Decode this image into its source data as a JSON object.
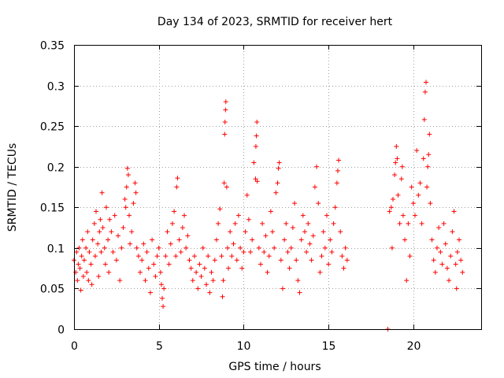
{
  "chart_data": {
    "type": "scatter",
    "title": "Day 134 of 2023, SRMTID for receiver hert",
    "xlabel": "GPS time / hours",
    "ylabel": "SRMTID / TECUs",
    "xlim": [
      0,
      24
    ],
    "ylim": [
      0,
      0.35
    ],
    "xticks": [
      0,
      5,
      10,
      15,
      20
    ],
    "xtick_labels": [
      "0",
      "5",
      "10",
      "15",
      "20"
    ],
    "yticks": [
      0,
      0.05,
      0.1,
      0.15,
      0.2,
      0.25,
      0.3,
      0.35
    ],
    "ytick_labels": [
      "0",
      "0.05",
      "0.1",
      "0.15",
      "0.2",
      "0.25",
      "0.3",
      "0.35"
    ],
    "grid": true,
    "legend": "none",
    "marker": "plus",
    "color": "#ff0000",
    "series": [
      {
        "points": [
          [
            0.0,
            0.085
          ],
          [
            0.1,
            0.07
          ],
          [
            0.15,
            0.095
          ],
          [
            0.2,
            0.06
          ],
          [
            0.25,
            0.08
          ],
          [
            0.3,
            0.1
          ],
          [
            0.35,
            0.075
          ],
          [
            0.4,
            0.048
          ],
          [
            0.45,
            0.09
          ],
          [
            0.5,
            0.11
          ],
          [
            0.55,
            0.065
          ],
          [
            0.6,
            0.085
          ],
          [
            0.7,
            0.1
          ],
          [
            0.75,
            0.07
          ],
          [
            0.8,
            0.12
          ],
          [
            0.85,
            0.06
          ],
          [
            0.9,
            0.095
          ],
          [
            1.0,
            0.08
          ],
          [
            1.05,
            0.055
          ],
          [
            1.1,
            0.11
          ],
          [
            1.2,
            0.13
          ],
          [
            1.25,
            0.09
          ],
          [
            1.3,
            0.145
          ],
          [
            1.4,
            0.105
          ],
          [
            1.45,
            0.065
          ],
          [
            1.5,
            0.12
          ],
          [
            1.55,
            0.135
          ],
          [
            1.6,
            0.095
          ],
          [
            1.65,
            0.168
          ],
          [
            1.7,
            0.125
          ],
          [
            1.8,
            0.1
          ],
          [
            1.85,
            0.08
          ],
          [
            1.9,
            0.15
          ],
          [
            2.0,
            0.11
          ],
          [
            2.05,
            0.07
          ],
          [
            2.1,
            0.135
          ],
          [
            2.2,
            0.12
          ],
          [
            2.3,
            0.095
          ],
          [
            2.4,
            0.14
          ],
          [
            2.5,
            0.085
          ],
          [
            2.6,
            0.115
          ],
          [
            2.7,
            0.06
          ],
          [
            2.8,
            0.1
          ],
          [
            2.9,
            0.125
          ],
          [
            3.0,
            0.16
          ],
          [
            3.05,
            0.15
          ],
          [
            3.1,
            0.175
          ],
          [
            3.15,
            0.198
          ],
          [
            3.2,
            0.19
          ],
          [
            3.25,
            0.14
          ],
          [
            3.3,
            0.105
          ],
          [
            3.4,
            0.12
          ],
          [
            3.5,
            0.155
          ],
          [
            3.6,
            0.18
          ],
          [
            3.65,
            0.168
          ],
          [
            3.7,
            0.1
          ],
          [
            3.8,
            0.09
          ],
          [
            3.9,
            0.07
          ],
          [
            4.0,
            0.085
          ],
          [
            4.1,
            0.105
          ],
          [
            4.2,
            0.06
          ],
          [
            4.3,
            0.095
          ],
          [
            4.4,
            0.075
          ],
          [
            4.5,
            0.045
          ],
          [
            4.6,
            0.11
          ],
          [
            4.7,
            0.08
          ],
          [
            4.8,
            0.065
          ],
          [
            4.9,
            0.09
          ],
          [
            5.0,
            0.1
          ],
          [
            5.1,
            0.07
          ],
          [
            5.15,
            0.055
          ],
          [
            5.2,
            0.038
          ],
          [
            5.25,
            0.028
          ],
          [
            5.3,
            0.05
          ],
          [
            5.4,
            0.09
          ],
          [
            5.5,
            0.12
          ],
          [
            5.6,
            0.08
          ],
          [
            5.7,
            0.105
          ],
          [
            5.8,
            0.13
          ],
          [
            5.9,
            0.145
          ],
          [
            6.0,
            0.09
          ],
          [
            6.05,
            0.175
          ],
          [
            6.1,
            0.186
          ],
          [
            6.2,
            0.11
          ],
          [
            6.3,
            0.095
          ],
          [
            6.4,
            0.125
          ],
          [
            6.5,
            0.14
          ],
          [
            6.6,
            0.1
          ],
          [
            6.7,
            0.115
          ],
          [
            6.8,
            0.085
          ],
          [
            6.9,
            0.075
          ],
          [
            7.0,
            0.06
          ],
          [
            7.1,
            0.09
          ],
          [
            7.2,
            0.07
          ],
          [
            7.3,
            0.05
          ],
          [
            7.4,
            0.08
          ],
          [
            7.5,
            0.065
          ],
          [
            7.6,
            0.1
          ],
          [
            7.7,
            0.075
          ],
          [
            7.8,
            0.055
          ],
          [
            7.9,
            0.09
          ],
          [
            8.0,
            0.045
          ],
          [
            8.1,
            0.07
          ],
          [
            8.2,
            0.06
          ],
          [
            8.3,
            0.085
          ],
          [
            8.4,
            0.11
          ],
          [
            8.5,
            0.13
          ],
          [
            8.6,
            0.148
          ],
          [
            8.7,
            0.09
          ],
          [
            8.75,
            0.04
          ],
          [
            8.8,
            0.06
          ],
          [
            8.85,
            0.18
          ],
          [
            8.88,
            0.24
          ],
          [
            8.9,
            0.255
          ],
          [
            8.93,
            0.27
          ],
          [
            8.95,
            0.28
          ],
          [
            9.0,
            0.175
          ],
          [
            9.05,
            0.1
          ],
          [
            9.1,
            0.075
          ],
          [
            9.2,
            0.12
          ],
          [
            9.3,
            0.09
          ],
          [
            9.4,
            0.105
          ],
          [
            9.5,
            0.13
          ],
          [
            9.6,
            0.085
          ],
          [
            9.7,
            0.14
          ],
          [
            9.8,
            0.1
          ],
          [
            9.9,
            0.075
          ],
          [
            10.0,
            0.095
          ],
          [
            10.1,
            0.12
          ],
          [
            10.2,
            0.165
          ],
          [
            10.3,
            0.135
          ],
          [
            10.4,
            0.095
          ],
          [
            10.5,
            0.11
          ],
          [
            10.6,
            0.205
          ],
          [
            10.7,
            0.185
          ],
          [
            10.72,
            0.225
          ],
          [
            10.75,
            0.238
          ],
          [
            10.78,
            0.255
          ],
          [
            10.8,
            0.182
          ],
          [
            10.9,
            0.1
          ],
          [
            11.0,
            0.08
          ],
          [
            11.1,
            0.13
          ],
          [
            11.2,
            0.095
          ],
          [
            11.3,
            0.115
          ],
          [
            11.4,
            0.07
          ],
          [
            11.5,
            0.09
          ],
          [
            11.6,
            0.145
          ],
          [
            11.7,
            0.12
          ],
          [
            11.8,
            0.1
          ],
          [
            11.9,
            0.168
          ],
          [
            12.0,
            0.18
          ],
          [
            12.05,
            0.198
          ],
          [
            12.1,
            0.205
          ],
          [
            12.2,
            0.085
          ],
          [
            12.3,
            0.05
          ],
          [
            12.4,
            0.11
          ],
          [
            12.5,
            0.13
          ],
          [
            12.6,
            0.095
          ],
          [
            12.7,
            0.075
          ],
          [
            12.8,
            0.1
          ],
          [
            12.9,
            0.125
          ],
          [
            13.0,
            0.155
          ],
          [
            13.1,
            0.085
          ],
          [
            13.2,
            0.06
          ],
          [
            13.3,
            0.045
          ],
          [
            13.4,
            0.11
          ],
          [
            13.5,
            0.14
          ],
          [
            13.6,
            0.12
          ],
          [
            13.7,
            0.095
          ],
          [
            13.8,
            0.13
          ],
          [
            13.9,
            0.105
          ],
          [
            14.0,
            0.085
          ],
          [
            14.1,
            0.115
          ],
          [
            14.2,
            0.175
          ],
          [
            14.3,
            0.2
          ],
          [
            14.4,
            0.155
          ],
          [
            14.5,
            0.07
          ],
          [
            14.6,
            0.09
          ],
          [
            14.7,
            0.12
          ],
          [
            14.8,
            0.1
          ],
          [
            14.9,
            0.14
          ],
          [
            15.0,
            0.08
          ],
          [
            15.1,
            0.11
          ],
          [
            15.2,
            0.095
          ],
          [
            15.3,
            0.13
          ],
          [
            15.4,
            0.15
          ],
          [
            15.5,
            0.18
          ],
          [
            15.55,
            0.195
          ],
          [
            15.6,
            0.208
          ],
          [
            15.7,
            0.12
          ],
          [
            15.8,
            0.09
          ],
          [
            15.9,
            0.075
          ],
          [
            16.0,
            0.1
          ],
          [
            16.1,
            0.085
          ],
          [
            18.5,
            0.0
          ],
          [
            18.6,
            0.145
          ],
          [
            18.7,
            0.15
          ],
          [
            18.75,
            0.1
          ],
          [
            18.8,
            0.16
          ],
          [
            18.9,
            0.19
          ],
          [
            18.95,
            0.205
          ],
          [
            19.0,
            0.225
          ],
          [
            19.05,
            0.21
          ],
          [
            19.1,
            0.165
          ],
          [
            19.2,
            0.13
          ],
          [
            19.3,
            0.185
          ],
          [
            19.35,
            0.2
          ],
          [
            19.4,
            0.14
          ],
          [
            19.5,
            0.11
          ],
          [
            19.6,
            0.06
          ],
          [
            19.7,
            0.13
          ],
          [
            19.8,
            0.09
          ],
          [
            19.9,
            0.175
          ],
          [
            20.0,
            0.155
          ],
          [
            20.1,
            0.14
          ],
          [
            20.2,
            0.22
          ],
          [
            20.3,
            0.165
          ],
          [
            20.4,
            0.18
          ],
          [
            20.5,
            0.13
          ],
          [
            20.6,
            0.21
          ],
          [
            20.65,
            0.258
          ],
          [
            20.7,
            0.292
          ],
          [
            20.75,
            0.304
          ],
          [
            20.8,
            0.175
          ],
          [
            20.85,
            0.2
          ],
          [
            20.9,
            0.215
          ],
          [
            20.95,
            0.24
          ],
          [
            21.0,
            0.155
          ],
          [
            21.1,
            0.11
          ],
          [
            21.2,
            0.085
          ],
          [
            21.3,
            0.07
          ],
          [
            21.4,
            0.1
          ],
          [
            21.5,
            0.125
          ],
          [
            21.6,
            0.095
          ],
          [
            21.7,
            0.08
          ],
          [
            21.8,
            0.13
          ],
          [
            21.9,
            0.105
          ],
          [
            22.0,
            0.075
          ],
          [
            22.1,
            0.06
          ],
          [
            22.2,
            0.09
          ],
          [
            22.3,
            0.12
          ],
          [
            22.4,
            0.145
          ],
          [
            22.5,
            0.08
          ],
          [
            22.55,
            0.05
          ],
          [
            22.6,
            0.095
          ],
          [
            22.7,
            0.11
          ],
          [
            22.8,
            0.085
          ],
          [
            22.9,
            0.07
          ]
        ]
      }
    ]
  }
}
